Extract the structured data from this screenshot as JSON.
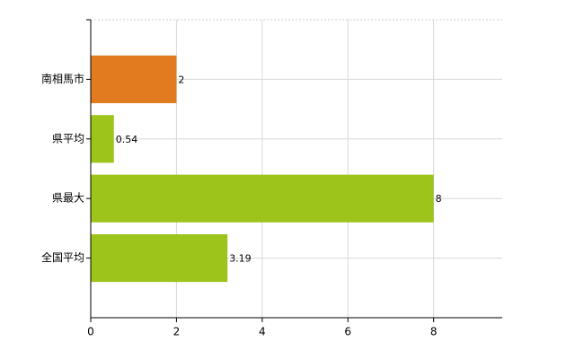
{
  "chart_data": {
    "type": "bar",
    "orientation": "horizontal",
    "categories": [
      "南相馬市",
      "県平均",
      "県最大",
      "全国平均"
    ],
    "values": [
      2,
      0.54,
      8,
      3.19
    ],
    "colors": [
      "#e07b20",
      "#9cc41b",
      "#9cc41b",
      "#9cc41b"
    ],
    "xlim": [
      0,
      9.6
    ],
    "xticks": [
      0,
      2,
      4,
      6,
      8
    ],
    "grid": true
  }
}
